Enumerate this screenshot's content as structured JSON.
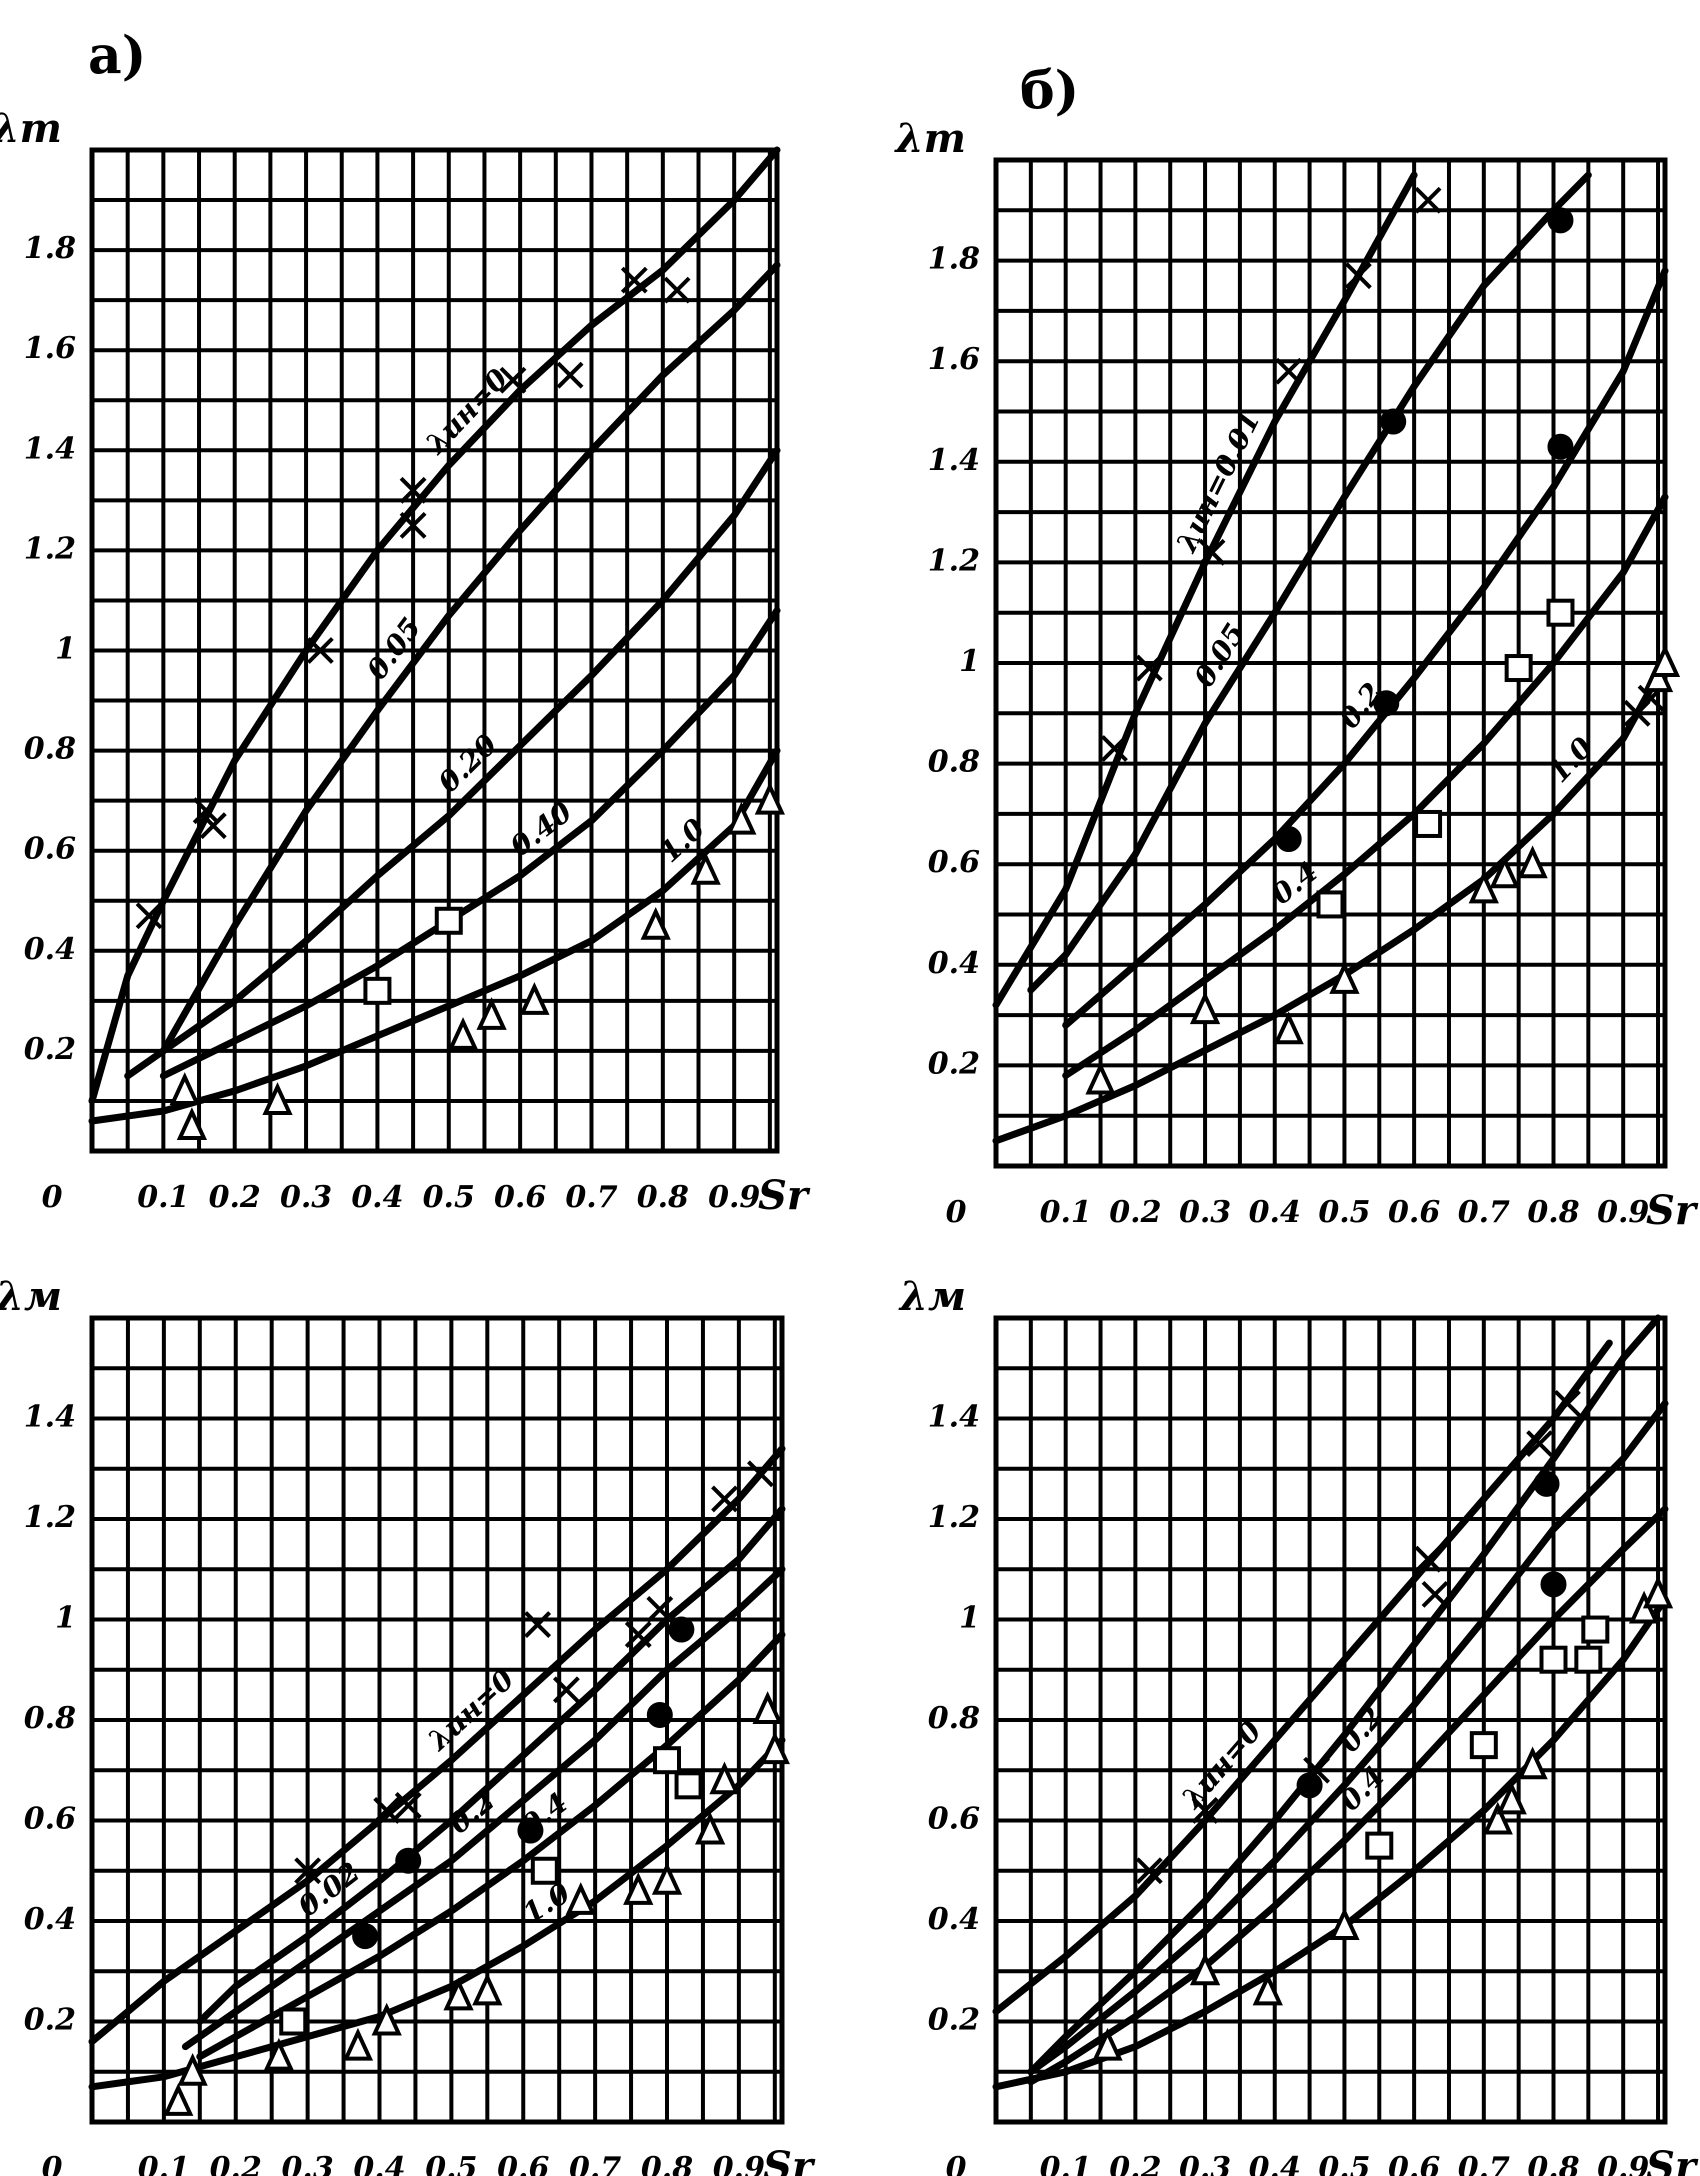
{
  "chart_data": [
    {
      "type": "line",
      "panel_label": "а)",
      "ylabel": "λт",
      "xlabel": "Sr",
      "color": "#000000",
      "grid": true,
      "xlim": [
        0,
        0.96
      ],
      "ylim": [
        0,
        2.0
      ],
      "xticks": [
        0,
        0.1,
        0.2,
        0.3,
        0.4,
        0.5,
        0.6,
        0.7,
        0.8,
        0.9
      ],
      "yticks": [
        0.2,
        0.4,
        0.6,
        0.8,
        1.0,
        1.2,
        1.4,
        1.6,
        1.8
      ],
      "series": [
        {
          "name": "λин=0",
          "x": [
            0,
            0.05,
            0.1,
            0.2,
            0.3,
            0.4,
            0.5,
            0.6,
            0.7,
            0.8,
            0.9,
            0.96
          ],
          "values": [
            0.1,
            0.35,
            0.5,
            0.78,
            1.0,
            1.2,
            1.37,
            1.52,
            1.65,
            1.76,
            1.9,
            2.0
          ]
        },
        {
          "name": "0.05",
          "x": [
            0.1,
            0.2,
            0.3,
            0.4,
            0.5,
            0.6,
            0.7,
            0.8,
            0.9,
            0.96
          ],
          "values": [
            0.2,
            0.45,
            0.68,
            0.88,
            1.07,
            1.24,
            1.4,
            1.55,
            1.68,
            1.77
          ]
        },
        {
          "name": "0.20",
          "x": [
            0.05,
            0.1,
            0.2,
            0.3,
            0.4,
            0.5,
            0.6,
            0.7,
            0.8,
            0.9,
            0.96
          ],
          "values": [
            0.15,
            0.2,
            0.3,
            0.42,
            0.55,
            0.67,
            0.81,
            0.95,
            1.1,
            1.27,
            1.4
          ]
        },
        {
          "name": "0.40",
          "x": [
            0.1,
            0.2,
            0.3,
            0.4,
            0.5,
            0.6,
            0.7,
            0.8,
            0.9,
            0.96
          ],
          "values": [
            0.15,
            0.22,
            0.29,
            0.37,
            0.46,
            0.55,
            0.66,
            0.8,
            0.95,
            1.08
          ]
        },
        {
          "name": "1.0",
          "x": [
            0,
            0.1,
            0.2,
            0.3,
            0.4,
            0.5,
            0.6,
            0.7,
            0.8,
            0.9,
            0.96
          ],
          "values": [
            0.06,
            0.08,
            0.12,
            0.17,
            0.23,
            0.29,
            0.35,
            0.42,
            0.52,
            0.65,
            0.8
          ]
        }
      ],
      "points": [
        {
          "marker": "x",
          "x": [
            0.08,
            0.16,
            0.17,
            0.32,
            0.45,
            0.45,
            0.59,
            0.67,
            0.76,
            0.82
          ],
          "values": [
            0.47,
            0.68,
            0.65,
            1.0,
            1.25,
            1.32,
            1.54,
            1.55,
            1.74,
            1.72
          ]
        },
        {
          "marker": "square",
          "x": [
            0.4,
            0.5
          ],
          "values": [
            0.32,
            0.46
          ]
        },
        {
          "marker": "triangle",
          "x": [
            0.13,
            0.14,
            0.26,
            0.52,
            0.56,
            0.62,
            0.79,
            0.86,
            0.91,
            0.95
          ],
          "values": [
            0.12,
            0.05,
            0.1,
            0.23,
            0.27,
            0.3,
            0.45,
            0.56,
            0.66,
            0.7
          ]
        }
      ]
    },
    {
      "type": "line",
      "panel_label": "б)",
      "ylabel": "λт",
      "xlabel": "Sr",
      "color": "#000000",
      "grid": true,
      "xlim": [
        0,
        0.96
      ],
      "ylim": [
        0,
        2.0
      ],
      "xticks": [
        0,
        0.1,
        0.2,
        0.3,
        0.4,
        0.5,
        0.6,
        0.7,
        0.8,
        0.9
      ],
      "yticks": [
        0.2,
        0.4,
        0.6,
        0.8,
        1.0,
        1.2,
        1.4,
        1.6,
        1.8
      ],
      "series": [
        {
          "name": "λин=0.01",
          "x": [
            0,
            0.1,
            0.2,
            0.3,
            0.4,
            0.5,
            0.6
          ],
          "values": [
            0.32,
            0.55,
            0.9,
            1.2,
            1.48,
            1.72,
            1.97
          ]
        },
        {
          "name": "0.05",
          "x": [
            0.05,
            0.1,
            0.2,
            0.3,
            0.4,
            0.5,
            0.6,
            0.7,
            0.8,
            0.85
          ],
          "values": [
            0.35,
            0.42,
            0.62,
            0.88,
            1.1,
            1.33,
            1.55,
            1.75,
            1.9,
            1.97
          ]
        },
        {
          "name": "0.2",
          "x": [
            0.1,
            0.2,
            0.3,
            0.4,
            0.5,
            0.6,
            0.7,
            0.8,
            0.9,
            0.96
          ],
          "values": [
            0.28,
            0.4,
            0.52,
            0.65,
            0.8,
            0.97,
            1.15,
            1.35,
            1.58,
            1.78
          ]
        },
        {
          "name": "0.4",
          "x": [
            0.1,
            0.2,
            0.3,
            0.4,
            0.5,
            0.6,
            0.7,
            0.8,
            0.9,
            0.96
          ],
          "values": [
            0.18,
            0.27,
            0.37,
            0.47,
            0.58,
            0.7,
            0.84,
            1.0,
            1.18,
            1.33
          ]
        },
        {
          "name": "1.0",
          "x": [
            0,
            0.1,
            0.2,
            0.3,
            0.4,
            0.5,
            0.6,
            0.7,
            0.8,
            0.9,
            0.96
          ],
          "values": [
            0.05,
            0.1,
            0.16,
            0.23,
            0.3,
            0.38,
            0.47,
            0.57,
            0.7,
            0.85,
            1.0
          ]
        }
      ],
      "points": [
        {
          "marker": "x",
          "x": [
            0.17,
            0.22,
            0.31,
            0.42,
            0.52,
            0.62,
            0.92,
            0.94
          ],
          "values": [
            0.83,
            0.99,
            1.22,
            1.58,
            1.77,
            1.92,
            0.9,
            0.93
          ]
        },
        {
          "marker": "dot",
          "x": [
            0.42,
            0.56,
            0.57,
            0.81,
            0.81
          ],
          "values": [
            0.65,
            0.92,
            1.48,
            1.43,
            1.88
          ]
        },
        {
          "marker": "square",
          "x": [
            0.48,
            0.62,
            0.75,
            0.81
          ],
          "values": [
            0.52,
            0.68,
            0.99,
            1.1
          ]
        },
        {
          "marker": "triangle",
          "x": [
            0.15,
            0.3,
            0.42,
            0.5,
            0.7,
            0.73,
            0.77,
            0.95,
            0.96
          ],
          "values": [
            0.17,
            0.31,
            0.27,
            0.37,
            0.55,
            0.58,
            0.6,
            0.97,
            1.0
          ]
        }
      ]
    },
    {
      "type": "line",
      "ylabel": "λм",
      "xlabel": "Sr",
      "color": "#000000",
      "grid": true,
      "xlim": [
        0,
        0.96
      ],
      "ylim": [
        0,
        1.6
      ],
      "xticks": [
        0,
        0.1,
        0.2,
        0.3,
        0.4,
        0.5,
        0.6,
        0.7,
        0.8,
        0.9
      ],
      "yticks": [
        0.2,
        0.4,
        0.6,
        0.8,
        1.0,
        1.2,
        1.4
      ],
      "series": [
        {
          "name": "λин=0",
          "x": [
            0,
            0.1,
            0.2,
            0.3,
            0.4,
            0.5,
            0.6,
            0.7,
            0.8,
            0.9,
            0.96
          ],
          "values": [
            0.16,
            0.28,
            0.38,
            0.48,
            0.6,
            0.72,
            0.85,
            0.98,
            1.1,
            1.24,
            1.34
          ]
        },
        {
          "name": "0.02",
          "x": [
            0.15,
            0.2,
            0.3,
            0.4,
            0.5,
            0.6,
            0.7,
            0.8,
            0.9,
            0.96
          ],
          "values": [
            0.2,
            0.27,
            0.37,
            0.48,
            0.6,
            0.73,
            0.86,
            1.0,
            1.12,
            1.22
          ]
        },
        {
          "name": "0.2",
          "x": [
            0.13,
            0.2,
            0.3,
            0.4,
            0.5,
            0.6,
            0.7,
            0.8,
            0.9,
            0.96
          ],
          "values": [
            0.15,
            0.22,
            0.32,
            0.42,
            0.52,
            0.64,
            0.76,
            0.9,
            1.02,
            1.1
          ]
        },
        {
          "name": "0.4",
          "x": [
            0.15,
            0.2,
            0.3,
            0.4,
            0.5,
            0.6,
            0.7,
            0.8,
            0.9,
            0.96
          ],
          "values": [
            0.13,
            0.17,
            0.25,
            0.33,
            0.42,
            0.52,
            0.63,
            0.75,
            0.88,
            0.97
          ]
        },
        {
          "name": "1.0",
          "x": [
            0,
            0.1,
            0.2,
            0.3,
            0.4,
            0.5,
            0.6,
            0.7,
            0.8,
            0.9,
            0.96
          ],
          "values": [
            0.07,
            0.09,
            0.13,
            0.17,
            0.21,
            0.27,
            0.35,
            0.44,
            0.55,
            0.67,
            0.76
          ]
        }
      ],
      "points": [
        {
          "marker": "x",
          "x": [
            0.3,
            0.41,
            0.44,
            0.62,
            0.66,
            0.76,
            0.79,
            0.88,
            0.93
          ],
          "values": [
            0.5,
            0.62,
            0.63,
            0.99,
            0.86,
            0.97,
            1.02,
            1.24,
            1.29
          ]
        },
        {
          "marker": "dot",
          "x": [
            0.38,
            0.44,
            0.61,
            0.79,
            0.82
          ],
          "values": [
            0.37,
            0.52,
            0.58,
            0.81,
            0.98
          ]
        },
        {
          "marker": "square",
          "x": [
            0.28,
            0.63,
            0.8,
            0.83
          ],
          "values": [
            0.2,
            0.5,
            0.72,
            0.67
          ]
        },
        {
          "marker": "triangle",
          "x": [
            0.12,
            0.14,
            0.26,
            0.37,
            0.41,
            0.51,
            0.55,
            0.68,
            0.76,
            0.8,
            0.86,
            0.88,
            0.94,
            0.95
          ],
          "values": [
            0.04,
            0.1,
            0.13,
            0.15,
            0.2,
            0.25,
            0.26,
            0.44,
            0.46,
            0.48,
            0.58,
            0.68,
            0.82,
            0.74
          ]
        }
      ]
    },
    {
      "type": "line",
      "ylabel": "λм",
      "xlabel": "Sr",
      "color": "#000000",
      "grid": true,
      "xlim": [
        0,
        0.96
      ],
      "ylim": [
        0,
        1.6
      ],
      "xticks": [
        0,
        0.1,
        0.2,
        0.3,
        0.4,
        0.5,
        0.6,
        0.7,
        0.8,
        0.9
      ],
      "yticks": [
        0.2,
        0.4,
        0.6,
        0.8,
        1.0,
        1.2,
        1.4
      ],
      "series": [
        {
          "name": "λин=0",
          "x": [
            0,
            0.1,
            0.2,
            0.3,
            0.4,
            0.5,
            0.6,
            0.7,
            0.8,
            0.88
          ],
          "values": [
            0.22,
            0.33,
            0.45,
            0.6,
            0.76,
            0.92,
            1.08,
            1.24,
            1.4,
            1.55
          ]
        },
        {
          "x": [
            0.05,
            0.1,
            0.2,
            0.3,
            0.4,
            0.5,
            0.6,
            0.7,
            0.8,
            0.9,
            0.95
          ],
          "values": [
            0.1,
            0.17,
            0.3,
            0.44,
            0.6,
            0.77,
            0.95,
            1.13,
            1.32,
            1.52,
            1.6
          ]
        },
        {
          "name": "0.2",
          "x": [
            0.05,
            0.1,
            0.2,
            0.3,
            0.4,
            0.5,
            0.6,
            0.7,
            0.8,
            0.9,
            0.96
          ],
          "values": [
            0.1,
            0.15,
            0.26,
            0.38,
            0.52,
            0.67,
            0.83,
            1.0,
            1.18,
            1.32,
            1.43
          ]
        },
        {
          "name": "0.4",
          "x": [
            0.05,
            0.1,
            0.2,
            0.3,
            0.4,
            0.5,
            0.6,
            0.7,
            0.8,
            0.9,
            0.96
          ],
          "values": [
            0.08,
            0.12,
            0.21,
            0.31,
            0.43,
            0.56,
            0.7,
            0.85,
            1.0,
            1.14,
            1.22
          ]
        },
        {
          "x": [
            0,
            0.1,
            0.2,
            0.3,
            0.4,
            0.5,
            0.6,
            0.7,
            0.8,
            0.9,
            0.96
          ],
          "values": [
            0.07,
            0.1,
            0.15,
            0.22,
            0.3,
            0.39,
            0.5,
            0.62,
            0.76,
            0.92,
            1.04
          ]
        }
      ],
      "points": [
        {
          "marker": "x",
          "x": [
            0.22,
            0.3,
            0.46,
            0.62,
            0.63,
            0.78,
            0.82
          ],
          "values": [
            0.5,
            0.62,
            0.7,
            1.12,
            1.05,
            1.35,
            1.43
          ]
        },
        {
          "marker": "dot",
          "x": [
            0.45,
            0.79,
            0.8
          ],
          "values": [
            0.67,
            1.27,
            1.07
          ]
        },
        {
          "marker": "square",
          "x": [
            0.55,
            0.7,
            0.8,
            0.85,
            0.86
          ],
          "values": [
            0.55,
            0.75,
            0.92,
            0.92,
            0.98
          ]
        },
        {
          "marker": "triangle",
          "x": [
            0.16,
            0.3,
            0.39,
            0.5,
            0.72,
            0.74,
            0.77,
            0.93,
            0.95
          ],
          "values": [
            0.15,
            0.3,
            0.26,
            0.39,
            0.6,
            0.64,
            0.71,
            1.02,
            1.05
          ]
        }
      ]
    }
  ]
}
